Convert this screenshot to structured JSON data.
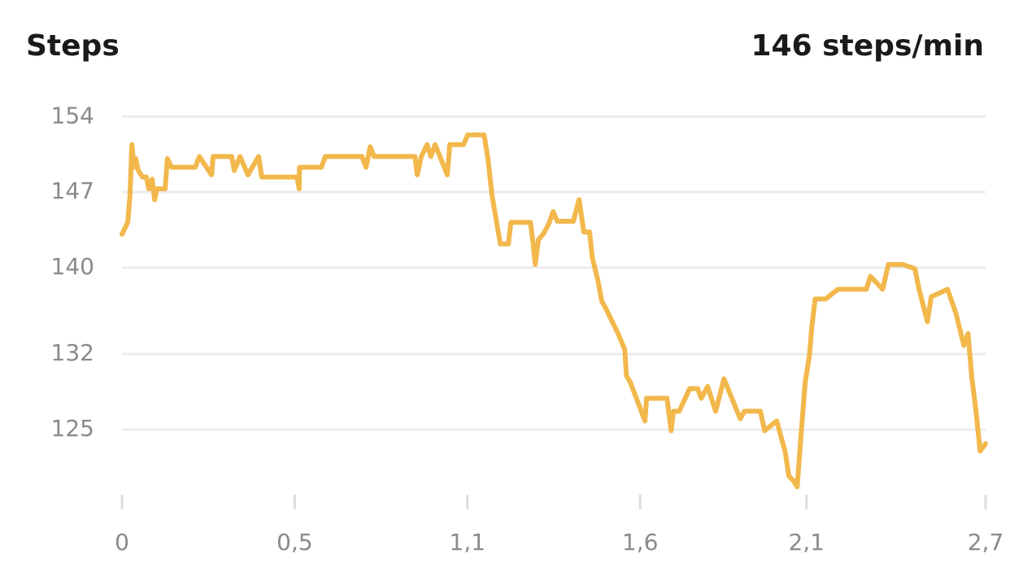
{
  "chart_data": {
    "type": "line",
    "title": "Steps",
    "subtitle": "146 steps/min",
    "x": [
      0,
      0.018,
      0.025,
      0.031,
      0.038,
      0.043,
      0.051,
      0.064,
      0.076,
      0.084,
      0.094,
      0.102,
      0.109,
      0.135,
      0.142,
      0.155,
      0.229,
      0.242,
      0.28,
      0.285,
      0.343,
      0.351,
      0.369,
      0.394,
      0.427,
      0.437,
      0.547,
      0.554,
      0.555,
      0.623,
      0.636,
      0.75,
      0.763,
      0.776,
      0.788,
      0.834,
      0.916,
      0.923,
      0.936,
      0.954,
      0.966,
      0.979,
      1.017,
      1.025,
      1.068,
      1.081,
      1.132,
      1.144,
      1.157,
      1.17,
      1.183,
      1.208,
      1.216,
      1.277,
      1.284,
      1.292,
      1.302,
      1.317,
      1.335,
      1.348,
      1.361,
      1.411,
      1.429,
      1.444,
      1.462,
      1.47,
      1.488,
      1.5,
      1.513,
      1.551,
      1.572,
      1.577,
      1.589,
      1.635,
      1.64,
      1.704,
      1.717,
      1.724,
      1.742,
      1.775,
      1.8,
      1.811,
      1.831,
      1.856,
      1.882,
      1.933,
      1.946,
      1.996,
      2.009,
      2.047,
      2.073,
      2.085,
      2.098,
      2.111,
      2.123,
      2.136,
      2.149,
      2.156,
      2.167,
      2.2,
      2.238,
      2.327,
      2.34,
      2.378,
      2.396,
      2.441,
      2.479,
      2.492,
      2.518,
      2.53,
      2.581,
      2.607,
      2.632,
      2.645,
      2.657,
      2.67,
      2.683,
      2.7
    ],
    "series": [
      {
        "name": "Steps",
        "color": "#f2b84b",
        "values": [
          143.1,
          144.2,
          146.7,
          151.4,
          149.3,
          150.1,
          149.0,
          148.4,
          148.4,
          147.3,
          148.2,
          146.3,
          147.3,
          147.3,
          150.1,
          149.3,
          149.3,
          150.3,
          148.6,
          150.3,
          150.3,
          149.0,
          150.3,
          148.6,
          150.3,
          148.4,
          148.4,
          147.3,
          149.3,
          149.3,
          150.3,
          150.3,
          149.3,
          151.2,
          150.3,
          150.3,
          150.3,
          148.6,
          150.3,
          151.4,
          150.3,
          151.4,
          148.6,
          151.4,
          151.4,
          152.3,
          152.3,
          150.1,
          146.7,
          144.4,
          142.2,
          142.2,
          144.2,
          144.2,
          142.6,
          140.3,
          142.6,
          143.1,
          144.1,
          145.2,
          144.3,
          144.3,
          146.3,
          143.3,
          143.3,
          141.0,
          138.8,
          136.9,
          136.2,
          133.9,
          132.4,
          130.0,
          129.4,
          125.8,
          127.9,
          127.9,
          124.9,
          126.7,
          126.7,
          128.8,
          128.8,
          127.9,
          129.0,
          126.7,
          129.7,
          126.0,
          126.7,
          126.7,
          124.9,
          125.8,
          123.0,
          120.7,
          120.3,
          119.7,
          124.5,
          129.4,
          131.8,
          134.3,
          137.1,
          137.1,
          138.0,
          138.0,
          139.2,
          138.0,
          140.3,
          140.3,
          139.9,
          138.0,
          135.0,
          137.3,
          138.0,
          135.8,
          132.8,
          133.9,
          129.8,
          126.7,
          123.0,
          123.7
        ]
      }
    ],
    "xlim": [
      0,
      2.7
    ],
    "xticks": [
      0,
      {
        "value": 0.54,
        "label": "0,5"
      },
      {
        "value": 1.08,
        "label": "1,1"
      },
      {
        "value": 1.62,
        "label": "1,6"
      },
      {
        "value": 2.14,
        "label": "2,1"
      },
      {
        "value": 2.7,
        "label": "2,7"
      }
    ],
    "ylim": [
      117.7,
      155
    ],
    "yticks": [
      125,
      132,
      140,
      147,
      154
    ],
    "grid": true
  }
}
